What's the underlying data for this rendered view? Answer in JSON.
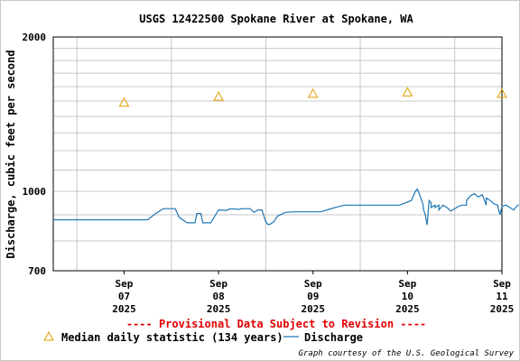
{
  "chart_data": {
    "type": "line",
    "title": "USGS 12422500 Spokane River at Spokane, WA",
    "ylabel": "Discharge, cubic feet per second",
    "xlabel": "",
    "y_scale": "log",
    "ylim": [
      700,
      2000
    ],
    "y_ticks": [
      "2000",
      "1000",
      "700"
    ],
    "y_tick_values": [
      2000,
      1000,
      700
    ],
    "x_range_hours": [
      -6,
      108
    ],
    "x_ticks": [
      {
        "month": "Sep",
        "day": "07",
        "year": "2025"
      },
      {
        "month": "Sep",
        "day": "08",
        "year": "2025"
      },
      {
        "month": "Sep",
        "day": "09",
        "year": "2025"
      },
      {
        "month": "Sep",
        "day": "10",
        "year": "2025"
      },
      {
        "month": "Sep",
        "day": "11",
        "year": "2025"
      }
    ],
    "grid": true,
    "legend_position": "bottom",
    "series": [
      {
        "name": "Discharge",
        "color": "#1f77b4",
        "style": "line",
        "points": [
          [
            -6,
            880
          ],
          [
            0,
            880
          ],
          [
            4,
            880
          ],
          [
            14,
            880
          ],
          [
            18,
            880
          ],
          [
            20,
            905
          ],
          [
            22,
            925
          ],
          [
            24,
            925
          ],
          [
            25,
            925
          ],
          [
            26,
            890
          ],
          [
            28,
            868
          ],
          [
            30,
            868
          ],
          [
            30.5,
            905
          ],
          [
            31.5,
            905
          ],
          [
            32,
            868
          ],
          [
            34,
            868
          ],
          [
            36,
            920
          ],
          [
            38,
            918
          ],
          [
            39,
            925
          ],
          [
            41,
            922
          ],
          [
            42,
            925
          ],
          [
            44,
            925
          ],
          [
            45,
            910
          ],
          [
            46,
            920
          ],
          [
            47,
            920
          ],
          [
            48,
            872
          ],
          [
            48.5,
            862
          ],
          [
            49,
            862
          ],
          [
            50,
            872
          ],
          [
            51,
            895
          ],
          [
            53,
            910
          ],
          [
            55,
            912
          ],
          [
            58,
            912
          ],
          [
            62,
            912
          ],
          [
            64,
            922
          ],
          [
            66,
            932
          ],
          [
            68,
            940
          ],
          [
            71,
            940
          ],
          [
            78,
            940
          ],
          [
            82,
            940
          ],
          [
            88,
            940
          ],
          [
            90,
            950
          ],
          [
            91,
            940
          ],
          [
            92,
            940
          ],
          [
            99,
            940
          ],
          [
            104,
            940
          ],
          [
            107,
            940
          ],
          [
            108,
            940
          ]
        ]
      },
      {
        "name": "Median daily statistic (134 years)",
        "color": "#e0a000",
        "style": "marker",
        "points": [
          [
            12,
            1490
          ],
          [
            36,
            1530
          ],
          [
            60,
            1550
          ],
          [
            84,
            1560
          ],
          [
            108,
            1550
          ]
        ]
      }
    ],
    "discharge_detail": [
      [
        84,
        940
      ],
      [
        85,
        960
      ],
      [
        86,
        1000
      ],
      [
        86.5,
        1010
      ],
      [
        87,
        990
      ],
      [
        88,
        925
      ],
      [
        88.5,
        900
      ],
      [
        89,
        860
      ],
      [
        89.5,
        960
      ],
      [
        90,
        930
      ],
      [
        91,
        930
      ],
      [
        92,
        920
      ],
      [
        93,
        940
      ],
      [
        94,
        930
      ],
      [
        95,
        915
      ],
      [
        96,
        925
      ],
      [
        97,
        935
      ],
      [
        98,
        940
      ],
      [
        99,
        960
      ],
      [
        100,
        980
      ],
      [
        101,
        990
      ],
      [
        102,
        975
      ],
      [
        103,
        985
      ],
      [
        104,
        970
      ],
      [
        105,
        960
      ],
      [
        106,
        945
      ],
      [
        107,
        930
      ],
      [
        107.5,
        900
      ],
      [
        108,
        935
      ],
      [
        109,
        940
      ],
      [
        110,
        930
      ],
      [
        111,
        920
      ],
      [
        112,
        940
      ],
      [
        113,
        940
      ],
      [
        114,
        925
      ],
      [
        115,
        930
      ],
      [
        116,
        940
      ],
      [
        117,
        935
      ],
      [
        118,
        935
      ],
      [
        119,
        935
      ],
      [
        120,
        940
      ]
    ],
    "notice": "---- Provisional Data Subject to Revision ----",
    "credit": "Graph courtesy of the U.S. Geological Survey"
  }
}
